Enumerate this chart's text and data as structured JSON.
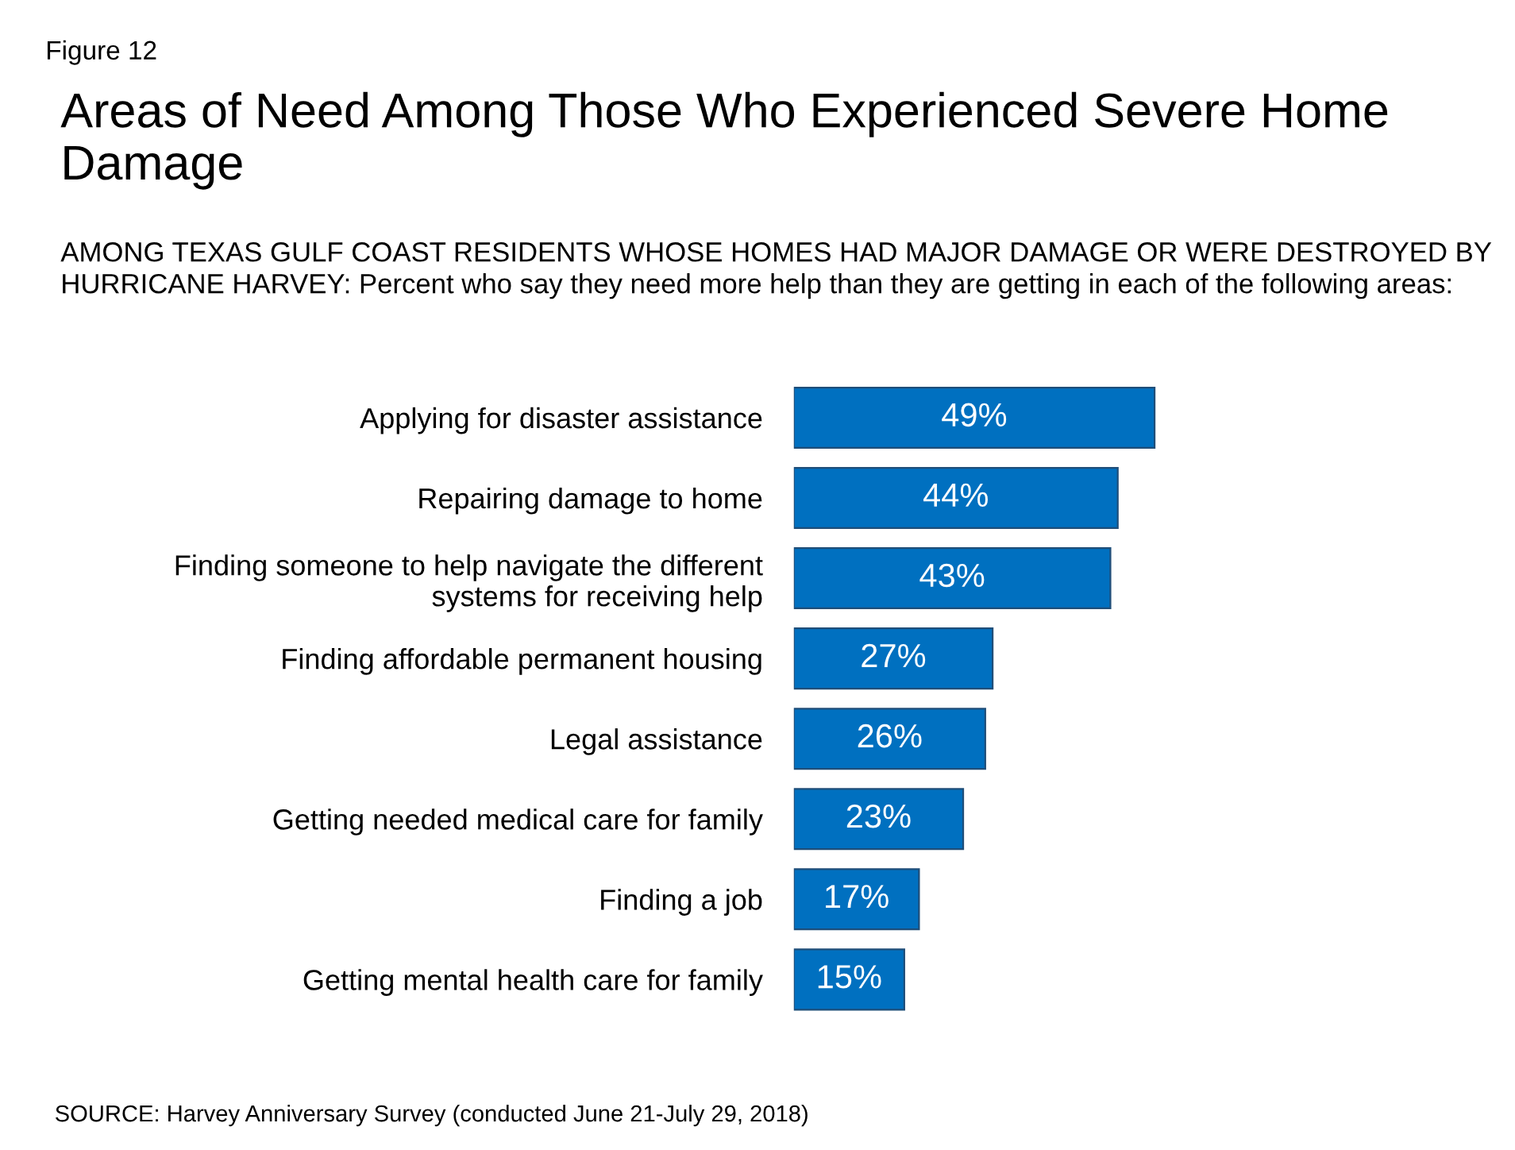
{
  "chart_data": {
    "type": "bar",
    "orientation": "horizontal",
    "title": "Areas of Need Among Those Who Experienced Severe Home Damage",
    "subtitle": "AMONG TEXAS GULF COAST RESIDENTS WHOSE HOMES HAD MAJOR DAMAGE OR WERE DESTROYED BY HURRICANE HARVEY: Percent who say they need more help than they are getting in each of the following areas:",
    "categories": [
      "Applying for disaster assistance",
      "Repairing damage to home",
      "Finding someone to help navigate the different\nsystems for receiving help",
      "Finding affordable permanent housing",
      "Legal assistance",
      "Getting needed medical care for family",
      "Finding a job",
      "Getting mental health care for family"
    ],
    "values": [
      49,
      44,
      43,
      27,
      26,
      23,
      17,
      15
    ],
    "value_labels": [
      "49%",
      "44%",
      "43%",
      "27%",
      "26%",
      "23%",
      "17%",
      "15%"
    ],
    "color": "#0070c0",
    "annotations": [
      "Figure 12",
      "SOURCE: Harvey Anniversary Survey (conducted June 21-July 29, 2018)"
    ],
    "grid": false,
    "legend": false
  }
}
